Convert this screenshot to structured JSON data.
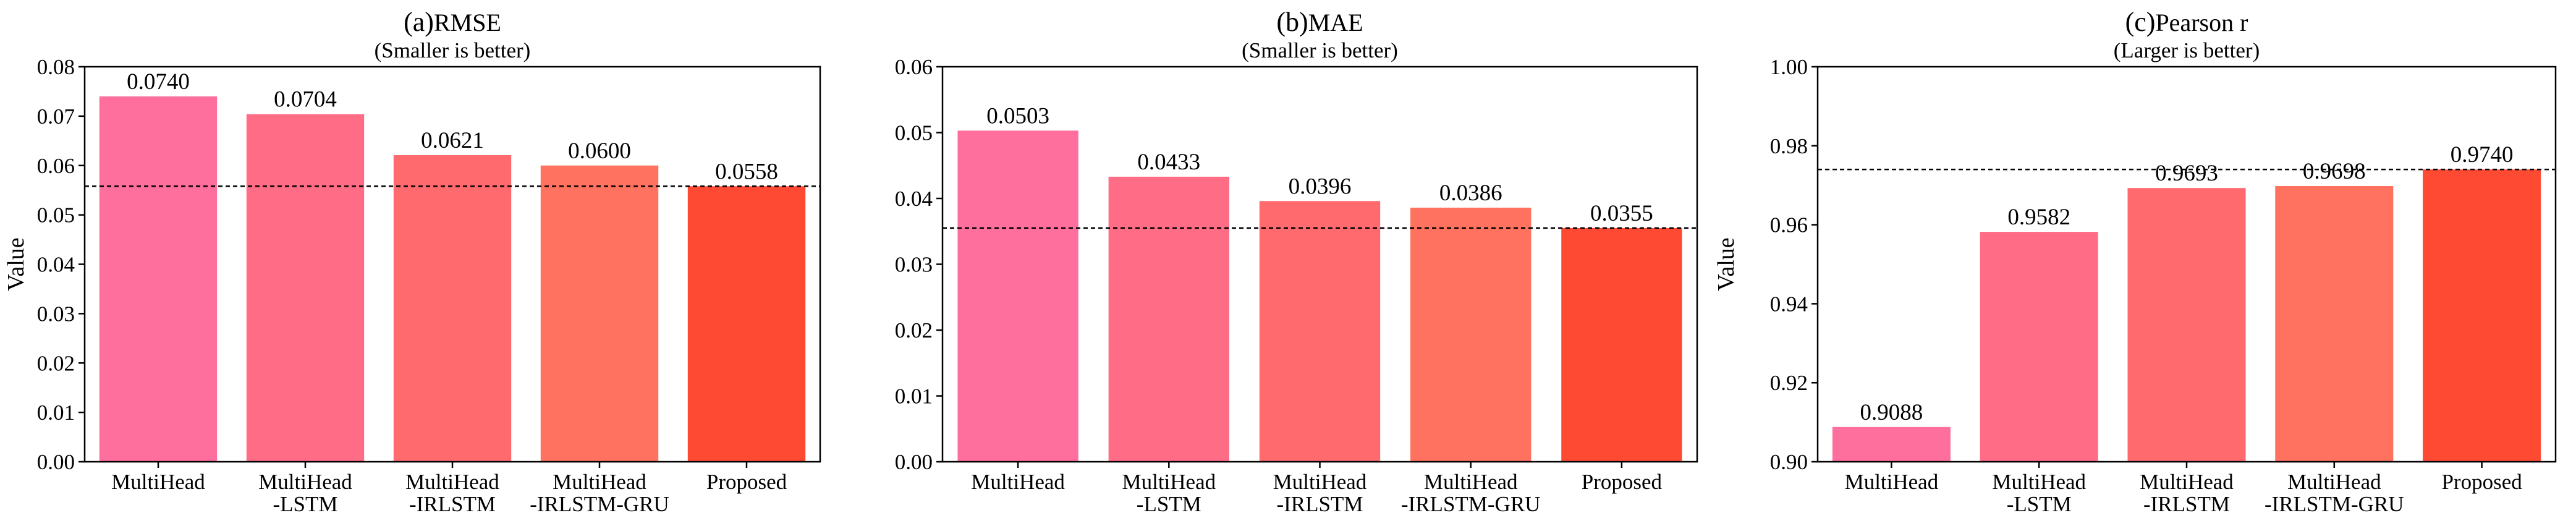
{
  "chart_data": [
    {
      "type": "bar",
      "title_letter": "(a)",
      "title": "RMSE",
      "subtitle": "(Smaller is better)",
      "ylabel": "Value",
      "xlabel": "",
      "ylim": [
        0,
        0.08
      ],
      "yticks": [
        "0.00",
        "0.01",
        "0.02",
        "0.03",
        "0.04",
        "0.05",
        "0.06",
        "0.07",
        "0.08"
      ],
      "categories": [
        "MultiHead",
        "MultiHead\n-LSTM",
        "MultiHead\n-IRLSTM",
        "MultiHead\n-IRLSTM-GRU",
        "Proposed"
      ],
      "values": [
        0.074,
        0.0704,
        0.0621,
        0.06,
        0.0558
      ],
      "value_labels": [
        "0.0740",
        "0.0704",
        "0.0621",
        "0.0600",
        "0.0558"
      ],
      "reference_line": 0.0558,
      "grid": false
    },
    {
      "type": "bar",
      "title_letter": "(b)",
      "title": "MAE",
      "subtitle": "(Smaller is better)",
      "ylabel": "",
      "xlabel": "",
      "ylim": [
        0,
        0.06
      ],
      "yticks": [
        "0.00",
        "0.01",
        "0.02",
        "0.03",
        "0.04",
        "0.05",
        "0.06"
      ],
      "categories": [
        "MultiHead",
        "MultiHead\n-LSTM",
        "MultiHead\n-IRLSTM",
        "MultiHead\n-IRLSTM-GRU",
        "Proposed"
      ],
      "values": [
        0.0503,
        0.0433,
        0.0396,
        0.0386,
        0.0355
      ],
      "value_labels": [
        "0.0503",
        "0.0433",
        "0.0396",
        "0.0386",
        "0.0355"
      ],
      "reference_line": 0.0355,
      "grid": false
    },
    {
      "type": "bar",
      "title_letter": "(c)",
      "title": "Pearson r",
      "subtitle": "(Larger is better)",
      "ylabel": "Value",
      "xlabel": "",
      "ylim": [
        0.9,
        1.0
      ],
      "yticks": [
        "0.90",
        "0.92",
        "0.94",
        "0.96",
        "0.98",
        "1.00"
      ],
      "categories": [
        "MultiHead",
        "MultiHead\n-LSTM",
        "MultiHead\n-IRLSTM",
        "MultiHead\n-IRLSTM-GRU",
        "Proposed"
      ],
      "values": [
        0.9088,
        0.9582,
        0.9693,
        0.9698,
        0.974
      ],
      "value_labels": [
        "0.9088",
        "0.9582",
        "0.9693",
        "0.9698",
        "0.9740"
      ],
      "reference_line": 0.974,
      "grid": false
    }
  ],
  "colors": {
    "bars": [
      "#ff6f9e",
      "#ff6c85",
      "#ff6a6f",
      "#ff725f",
      "#ff4a33"
    ],
    "reference_line": "#000000",
    "axis": "#000000"
  }
}
